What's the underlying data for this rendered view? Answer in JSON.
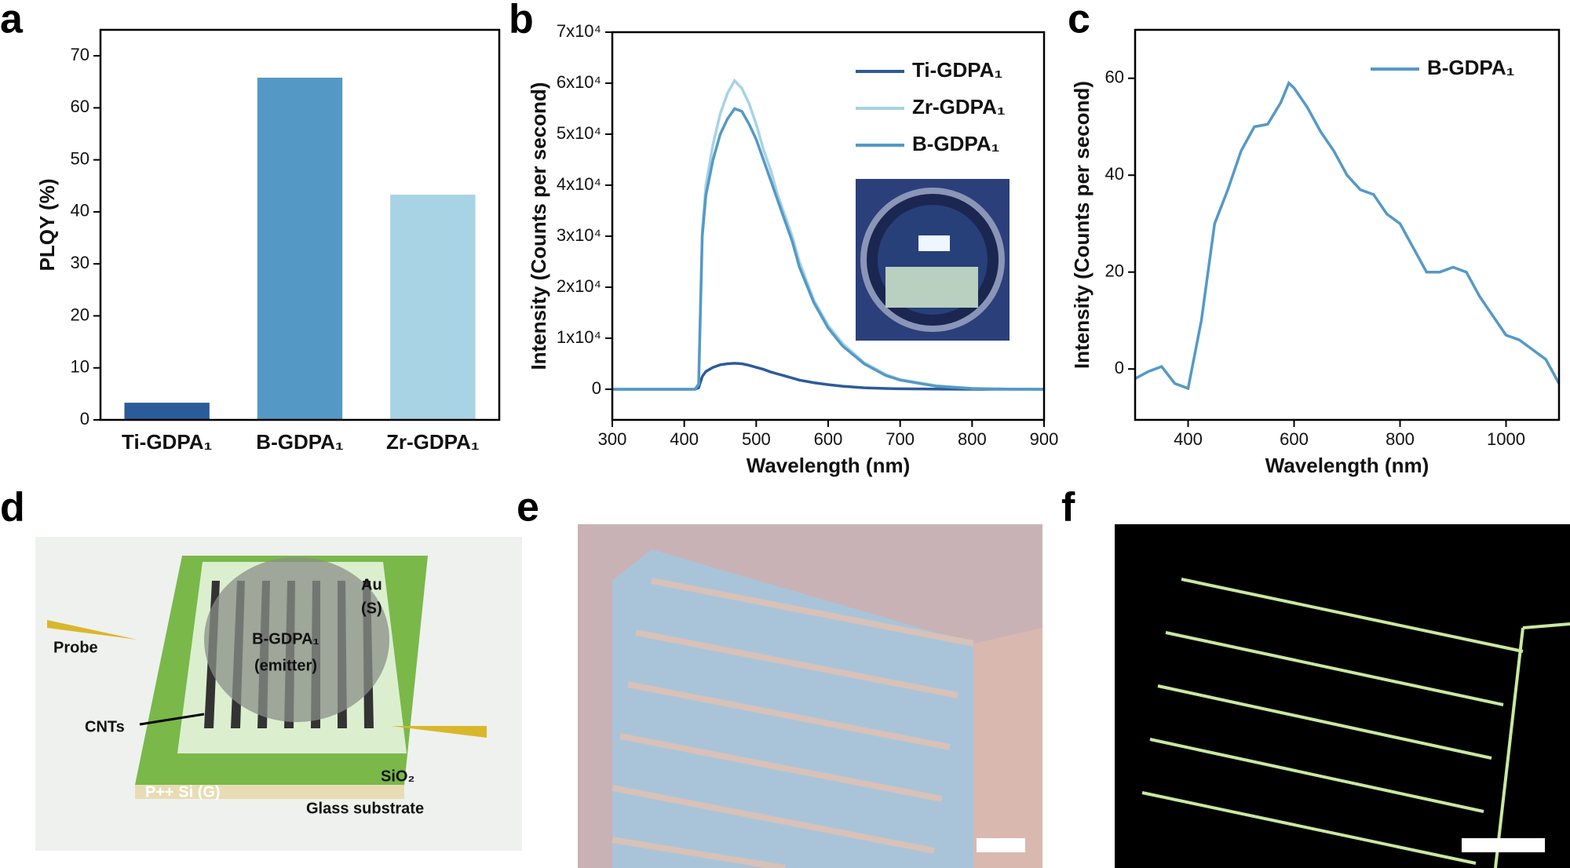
{
  "panel_labels": [
    "a",
    "b",
    "c",
    "d",
    "e",
    "f"
  ],
  "panel_d": {
    "labels": [
      "Au",
      "(S)",
      "B-GDPA₁",
      "(emitter)",
      "Probe",
      "CNTs",
      "SiO₂",
      "P++ Si (G)",
      "Glass substrate"
    ]
  },
  "chart_data": [
    {
      "type": "bar",
      "ylabel": "PLQY (%)",
      "categories": [
        "Ti-GDPA₁",
        "B-GDPA₁",
        "Zr-GDPA₁"
      ],
      "values": [
        3.3,
        65.8,
        43.3
      ],
      "colors": [
        "#2c5b9b",
        "#5499c6",
        "#a7d3e5"
      ],
      "ylim": [
        0,
        75
      ],
      "yticks": [
        0,
        10,
        20,
        30,
        40,
        50,
        60,
        70
      ]
    },
    {
      "type": "line",
      "xlabel": "Wavelength (nm)",
      "ylabel": "Intensity (Counts per second)",
      "x": [
        300,
        350,
        400,
        415,
        420,
        425,
        430,
        440,
        450,
        460,
        470,
        480,
        490,
        500,
        510,
        520,
        530,
        540,
        550,
        560,
        580,
        600,
        620,
        650,
        680,
        700,
        750,
        800,
        850,
        900
      ],
      "series": [
        {
          "name": "Ti-GDPA₁",
          "color": "#2c5b9b",
          "values": [
            0,
            0,
            0,
            0,
            300,
            2500,
            3500,
            4300,
            4800,
            5000,
            5100,
            5000,
            4700,
            4300,
            3900,
            3400,
            3000,
            2600,
            2200,
            1800,
            1300,
            900,
            600,
            300,
            150,
            90,
            30,
            5,
            0,
            0
          ]
        },
        {
          "name": "Zr-GDPA₁",
          "color": "#a7d3e5",
          "values": [
            0,
            0,
            0,
            0,
            1000,
            31000,
            40000,
            48000,
            54000,
            58000,
            60500,
            59000,
            56000,
            52000,
            47000,
            43000,
            38000,
            34000,
            30000,
            25000,
            17500,
            12500,
            9000,
            5200,
            2900,
            1900,
            700,
            150,
            30,
            0
          ]
        },
        {
          "name": "B-GDPA₁",
          "color": "#5499c6",
          "values": [
            0,
            0,
            0,
            0,
            1000,
            30000,
            38000,
            45000,
            50000,
            53000,
            55000,
            54500,
            52000,
            49000,
            45000,
            41000,
            37000,
            33000,
            29000,
            24000,
            17000,
            12000,
            8500,
            5000,
            2700,
            1800,
            600,
            150,
            30,
            0
          ]
        }
      ],
      "xlim": [
        300,
        900
      ],
      "xticks": [
        300,
        400,
        500,
        600,
        700,
        800,
        900
      ],
      "ylim": [
        -6000,
        70000
      ],
      "yticks": [
        0,
        {
          "value": 10000,
          "label": "1x10⁴"
        },
        {
          "value": 20000,
          "label": "2x10⁴"
        },
        {
          "value": 30000,
          "label": "3x10⁴"
        },
        {
          "value": 40000,
          "label": "4x10⁴"
        },
        {
          "value": 50000,
          "label": "5x10⁴"
        },
        {
          "value": 60000,
          "label": "6x10⁴"
        },
        {
          "value": 70000,
          "label": "7x10⁴"
        }
      ],
      "legend": "upper right"
    },
    {
      "type": "line",
      "xlabel": "Wavelength (nm)",
      "ylabel": "Intensity (Counts per second)",
      "x": [
        300,
        325,
        350,
        375,
        400,
        425,
        450,
        475,
        500,
        525,
        550,
        575,
        590,
        600,
        625,
        650,
        675,
        700,
        725,
        750,
        775,
        800,
        825,
        850,
        875,
        900,
        925,
        950,
        975,
        1000,
        1025,
        1050,
        1075,
        1100
      ],
      "series": [
        {
          "name": "B-GDPA₁",
          "color": "#5499c6",
          "values": [
            -2,
            -0.5,
            0.5,
            -3,
            -4,
            10,
            30,
            37,
            45,
            50,
            50.5,
            55,
            59,
            58,
            54,
            49,
            45,
            40,
            37,
            36,
            32,
            30,
            25,
            20,
            20,
            21,
            20,
            15,
            11,
            7,
            6,
            4,
            2,
            -3
          ]
        }
      ],
      "xlim": [
        300,
        1100
      ],
      "xticks": [
        400,
        600,
        800,
        1000
      ],
      "ylim": [
        -10.5,
        70
      ],
      "yticks": [
        0,
        20,
        40,
        60
      ],
      "legend": "upper right"
    }
  ]
}
